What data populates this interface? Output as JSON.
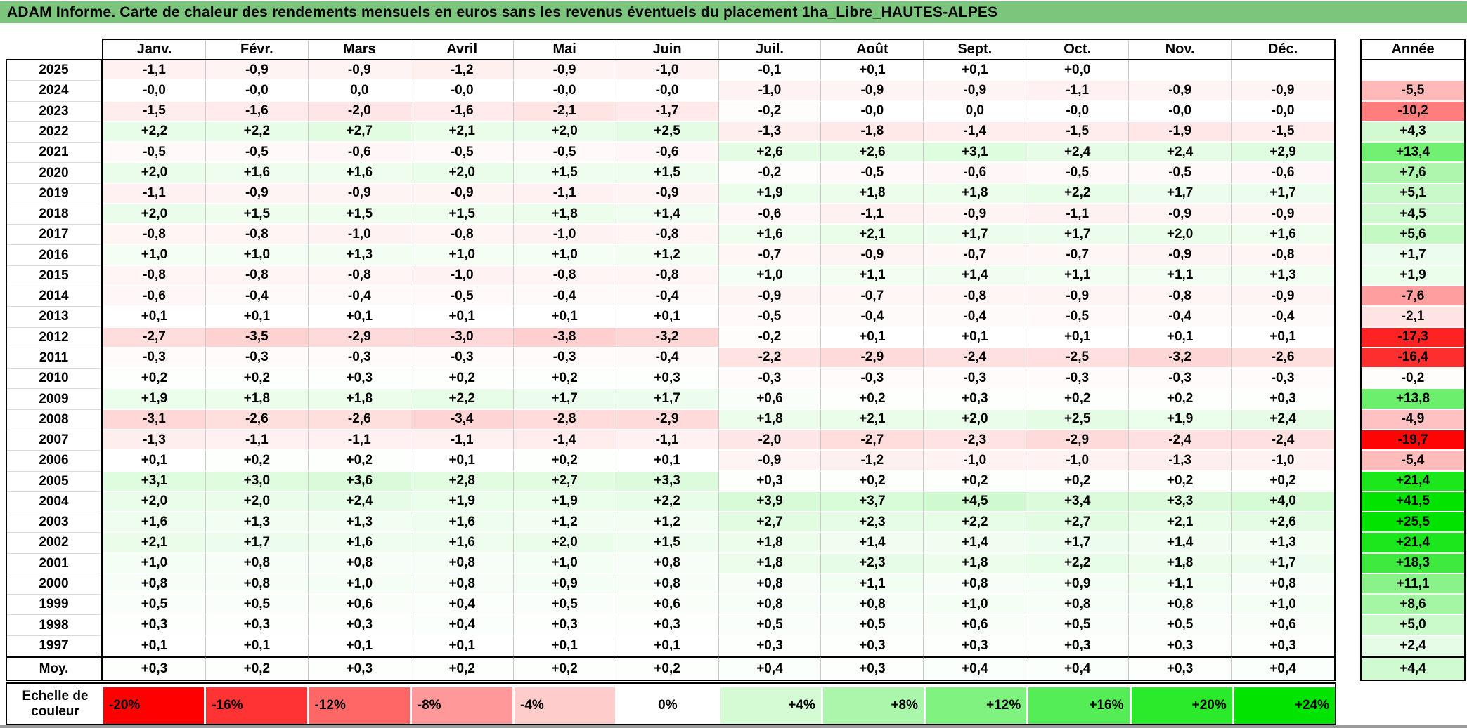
{
  "chart_data": {
    "type": "heatmap",
    "title": "ADAM Informe. Carte de chaleur des rendements mensuels en euros sans les revenus éventuels du placement 1ha_Libre_HAUTES-ALPES",
    "columns": [
      "Janv.",
      "Févr.",
      "Mars",
      "Avril",
      "Mai",
      "Juin",
      "Juil.",
      "Août",
      "Sept.",
      "Oct.",
      "Nov.",
      "Déc."
    ],
    "annual_column": "Année",
    "rows": [
      {
        "year": "2025",
        "values": [
          "-1,1",
          "-0,9",
          "-0,9",
          "-1,2",
          "-0,9",
          "-1,0",
          "-0,1",
          "+0,1",
          "+0,1",
          "+0,0",
          "",
          ""
        ],
        "annee": ""
      },
      {
        "year": "2024",
        "values": [
          "-0,0",
          "-0,0",
          "0,0",
          "-0,0",
          "-0,0",
          "-0,0",
          "-1,0",
          "-0,9",
          "-0,9",
          "-1,1",
          "-0,9",
          "-0,9"
        ],
        "annee": "-5,5"
      },
      {
        "year": "2023",
        "values": [
          "-1,5",
          "-1,6",
          "-2,0",
          "-1,6",
          "-2,1",
          "-1,7",
          "-0,2",
          "-0,0",
          "0,0",
          "-0,0",
          "-0,0",
          "-0,0"
        ],
        "annee": "-10,2"
      },
      {
        "year": "2022",
        "values": [
          "+2,2",
          "+2,2",
          "+2,7",
          "+2,1",
          "+2,0",
          "+2,5",
          "-1,3",
          "-1,8",
          "-1,4",
          "-1,5",
          "-1,9",
          "-1,5"
        ],
        "annee": "+4,3"
      },
      {
        "year": "2021",
        "values": [
          "-0,5",
          "-0,5",
          "-0,6",
          "-0,5",
          "-0,5",
          "-0,6",
          "+2,6",
          "+2,6",
          "+3,1",
          "+2,4",
          "+2,4",
          "+2,9"
        ],
        "annee": "+13,4"
      },
      {
        "year": "2020",
        "values": [
          "+2,0",
          "+1,6",
          "+1,6",
          "+2,0",
          "+1,5",
          "+1,5",
          "-0,2",
          "-0,5",
          "-0,6",
          "-0,5",
          "-0,5",
          "-0,6"
        ],
        "annee": "+7,6"
      },
      {
        "year": "2019",
        "values": [
          "-1,1",
          "-0,9",
          "-0,9",
          "-0,9",
          "-1,1",
          "-0,9",
          "+1,9",
          "+1,8",
          "+1,8",
          "+2,2",
          "+1,7",
          "+1,7"
        ],
        "annee": "+5,1"
      },
      {
        "year": "2018",
        "values": [
          "+2,0",
          "+1,5",
          "+1,5",
          "+1,5",
          "+1,8",
          "+1,4",
          "-0,6",
          "-1,1",
          "-0,9",
          "-1,1",
          "-0,9",
          "-0,9"
        ],
        "annee": "+4,5"
      },
      {
        "year": "2017",
        "values": [
          "-0,8",
          "-0,8",
          "-1,0",
          "-0,8",
          "-1,0",
          "-0,8",
          "+1,6",
          "+2,1",
          "+1,7",
          "+1,7",
          "+2,0",
          "+1,6"
        ],
        "annee": "+5,6"
      },
      {
        "year": "2016",
        "values": [
          "+1,0",
          "+1,0",
          "+1,3",
          "+1,0",
          "+1,0",
          "+1,2",
          "-0,7",
          "-0,9",
          "-0,7",
          "-0,7",
          "-0,9",
          "-0,8"
        ],
        "annee": "+1,7"
      },
      {
        "year": "2015",
        "values": [
          "-0,8",
          "-0,8",
          "-0,8",
          "-1,0",
          "-0,8",
          "-0,8",
          "+1,0",
          "+1,1",
          "+1,4",
          "+1,1",
          "+1,1",
          "+1,3"
        ],
        "annee": "+1,9"
      },
      {
        "year": "2014",
        "values": [
          "-0,6",
          "-0,4",
          "-0,4",
          "-0,5",
          "-0,4",
          "-0,4",
          "-0,9",
          "-0,7",
          "-0,8",
          "-0,9",
          "-0,8",
          "-0,9"
        ],
        "annee": "-7,6"
      },
      {
        "year": "2013",
        "values": [
          "+0,1",
          "+0,1",
          "+0,1",
          "+0,1",
          "+0,1",
          "+0,1",
          "-0,5",
          "-0,4",
          "-0,4",
          "-0,5",
          "-0,4",
          "-0,4"
        ],
        "annee": "-2,1"
      },
      {
        "year": "2012",
        "values": [
          "-2,7",
          "-3,5",
          "-2,9",
          "-3,0",
          "-3,8",
          "-3,2",
          "-0,2",
          "+0,1",
          "+0,1",
          "+0,1",
          "+0,1",
          "+0,1"
        ],
        "annee": "-17,3"
      },
      {
        "year": "2011",
        "values": [
          "-0,3",
          "-0,3",
          "-0,3",
          "-0,3",
          "-0,3",
          "-0,4",
          "-2,2",
          "-2,9",
          "-2,4",
          "-2,5",
          "-3,2",
          "-2,6"
        ],
        "annee": "-16,4"
      },
      {
        "year": "2010",
        "values": [
          "+0,2",
          "+0,2",
          "+0,3",
          "+0,2",
          "+0,2",
          "+0,3",
          "-0,3",
          "-0,3",
          "-0,3",
          "-0,3",
          "-0,3",
          "-0,3"
        ],
        "annee": "-0,2"
      },
      {
        "year": "2009",
        "values": [
          "+1,9",
          "+1,8",
          "+1,8",
          "+2,2",
          "+1,7",
          "+1,7",
          "+0,6",
          "+0,2",
          "+0,3",
          "+0,2",
          "+0,2",
          "+0,3"
        ],
        "annee": "+13,8"
      },
      {
        "year": "2008",
        "values": [
          "-3,1",
          "-2,6",
          "-2,6",
          "-3,4",
          "-2,8",
          "-2,9",
          "+1,8",
          "+2,1",
          "+2,0",
          "+2,5",
          "+1,9",
          "+2,4"
        ],
        "annee": "-4,9"
      },
      {
        "year": "2007",
        "values": [
          "-1,3",
          "-1,1",
          "-1,1",
          "-1,1",
          "-1,4",
          "-1,1",
          "-2,0",
          "-2,7",
          "-2,3",
          "-2,9",
          "-2,4",
          "-2,4"
        ],
        "annee": "-19,7"
      },
      {
        "year": "2006",
        "values": [
          "+0,1",
          "+0,2",
          "+0,2",
          "+0,1",
          "+0,2",
          "+0,1",
          "-0,9",
          "-1,2",
          "-1,0",
          "-1,0",
          "-1,3",
          "-1,0"
        ],
        "annee": "-5,4"
      },
      {
        "year": "2005",
        "values": [
          "+3,1",
          "+3,0",
          "+3,6",
          "+2,8",
          "+2,7",
          "+3,3",
          "+0,3",
          "+0,2",
          "+0,2",
          "+0,2",
          "+0,2",
          "+0,2"
        ],
        "annee": "+21,4"
      },
      {
        "year": "2004",
        "values": [
          "+2,0",
          "+2,0",
          "+2,4",
          "+1,9",
          "+1,9",
          "+2,2",
          "+3,9",
          "+3,7",
          "+4,5",
          "+3,4",
          "+3,3",
          "+4,0"
        ],
        "annee": "+41,5"
      },
      {
        "year": "2003",
        "values": [
          "+1,6",
          "+1,3",
          "+1,3",
          "+1,6",
          "+1,2",
          "+1,2",
          "+2,7",
          "+2,3",
          "+2,2",
          "+2,7",
          "+2,1",
          "+2,6"
        ],
        "annee": "+25,5"
      },
      {
        "year": "2002",
        "values": [
          "+2,1",
          "+1,7",
          "+1,6",
          "+1,6",
          "+2,0",
          "+1,5",
          "+1,8",
          "+1,4",
          "+1,4",
          "+1,7",
          "+1,4",
          "+1,3"
        ],
        "annee": "+21,4"
      },
      {
        "year": "2001",
        "values": [
          "+1,0",
          "+0,8",
          "+0,8",
          "+0,8",
          "+1,0",
          "+0,8",
          "+1,8",
          "+2,3",
          "+1,8",
          "+2,2",
          "+1,8",
          "+1,7"
        ],
        "annee": "+18,3"
      },
      {
        "year": "2000",
        "values": [
          "+0,8",
          "+0,8",
          "+1,0",
          "+0,8",
          "+0,9",
          "+0,8",
          "+0,8",
          "+1,1",
          "+0,8",
          "+0,9",
          "+1,1",
          "+0,8"
        ],
        "annee": "+11,1"
      },
      {
        "year": "1999",
        "values": [
          "+0,5",
          "+0,5",
          "+0,6",
          "+0,4",
          "+0,5",
          "+0,6",
          "+0,8",
          "+0,8",
          "+1,0",
          "+0,8",
          "+0,8",
          "+1,0"
        ],
        "annee": "+8,6"
      },
      {
        "year": "1998",
        "values": [
          "+0,3",
          "+0,3",
          "+0,3",
          "+0,4",
          "+0,3",
          "+0,3",
          "+0,5",
          "+0,5",
          "+0,6",
          "+0,5",
          "+0,5",
          "+0,6"
        ],
        "annee": "+5,0"
      },
      {
        "year": "1997",
        "values": [
          "+0,1",
          "+0,1",
          "+0,1",
          "+0,1",
          "+0,1",
          "+0,1",
          "+0,3",
          "+0,3",
          "+0,3",
          "+0,3",
          "+0,3",
          "+0,3"
        ],
        "annee": "+2,4"
      },
      {
        "year": "Moy.",
        "values": [
          "+0,3",
          "+0,2",
          "+0,3",
          "+0,2",
          "+0,2",
          "+0,2",
          "+0,4",
          "+0,3",
          "+0,4",
          "+0,4",
          "+0,3",
          "+0,4"
        ],
        "annee": "+4,4"
      }
    ],
    "color_scale": {
      "label": "Echelle de couleur",
      "stops": [
        "-20%",
        "-16%",
        "-12%",
        "-8%",
        "-4%",
        "0%",
        "+4%",
        "+8%",
        "+12%",
        "+16%",
        "+20%",
        "+24%"
      ],
      "negative_color": "#ff0000",
      "positive_color": "#00e400",
      "neutral_color": "#ffffff",
      "negative_limit": -20,
      "positive_limit": 24
    },
    "colors": {
      "title_background": "#7cc57d",
      "grid_vertical": "#c9c9c9",
      "border": "#000000"
    }
  }
}
